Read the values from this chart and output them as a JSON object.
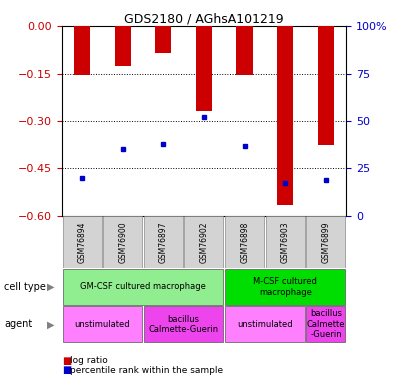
{
  "title": "GDS2180 / AGhsA101219",
  "samples": [
    "GSM76894",
    "GSM76900",
    "GSM76897",
    "GSM76902",
    "GSM76898",
    "GSM76903",
    "GSM76899"
  ],
  "log_ratios": [
    -0.155,
    -0.125,
    -0.085,
    -0.27,
    -0.155,
    -0.565,
    -0.375
  ],
  "percentile_ranks": [
    20,
    35,
    38,
    52,
    37,
    17,
    19
  ],
  "ylim_left": [
    -0.6,
    0.0
  ],
  "ylim_right": [
    0,
    100
  ],
  "yticks_left": [
    0.0,
    -0.15,
    -0.3,
    -0.45,
    -0.6
  ],
  "yticks_right": [
    0,
    25,
    50,
    75,
    100
  ],
  "bar_color": "#CC0000",
  "dot_color": "#0000CC",
  "bar_width": 0.4,
  "label_color_left": "#CC0000",
  "label_color_right": "#0000CC",
  "cell_type_groups": [
    {
      "label": "GM-CSF cultured macrophage",
      "start": 0,
      "end": 3,
      "color": "#90EE90"
    },
    {
      "label": "M-CSF cultured\nmacrophage",
      "start": 4,
      "end": 6,
      "color": "#00DD00"
    }
  ],
  "agent_groups": [
    {
      "label": "unstimulated",
      "start": 0,
      "end": 1,
      "color": "#FF80FF"
    },
    {
      "label": "bacillus\nCalmette-Guerin",
      "start": 2,
      "end": 3,
      "color": "#EE44EE"
    },
    {
      "label": "unstimulated",
      "start": 4,
      "end": 5,
      "color": "#FF80FF"
    },
    {
      "label": "bacillus\nCalmette\n-Guerin",
      "start": 6,
      "end": 6,
      "color": "#EE44EE"
    }
  ]
}
